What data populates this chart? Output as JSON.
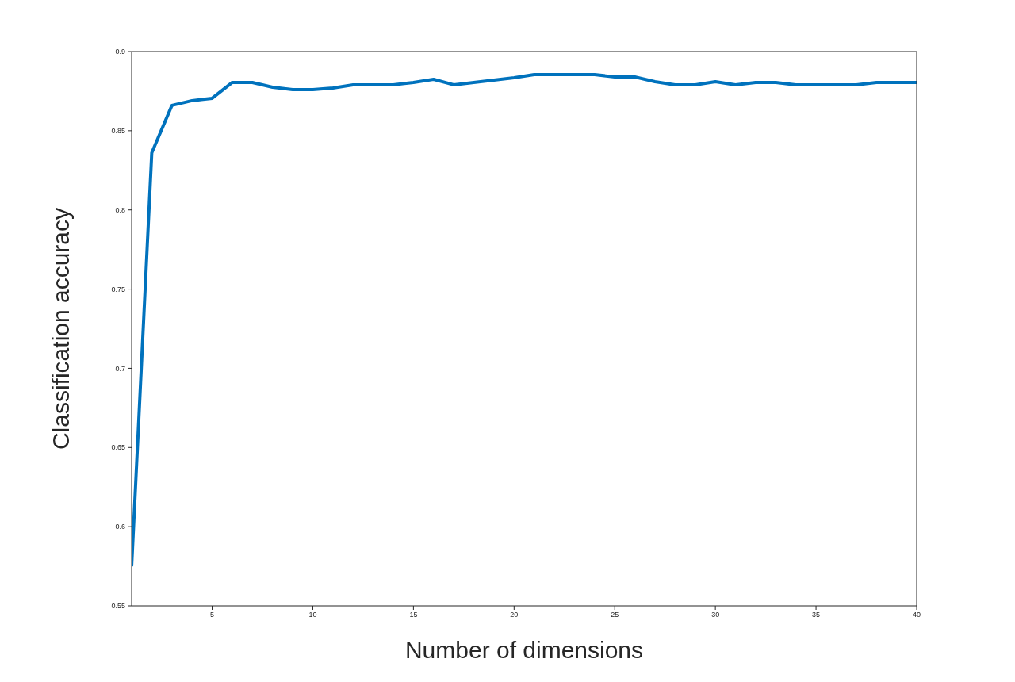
{
  "chart_data": {
    "type": "line",
    "xlabel": "Number of dimensions",
    "ylabel": "Classification accuracy",
    "x": [
      1,
      2,
      3,
      4,
      5,
      6,
      7,
      8,
      9,
      10,
      11,
      12,
      13,
      14,
      15,
      16,
      17,
      18,
      19,
      20,
      21,
      22,
      23,
      24,
      25,
      26,
      27,
      28,
      29,
      30,
      31,
      32,
      33,
      34,
      35,
      36,
      37,
      38,
      39,
      40
    ],
    "series": [
      {
        "color": "#0072bd",
        "values": [
          0.575,
          0.836,
          0.866,
          0.869,
          0.8705,
          0.8805,
          0.8805,
          0.8775,
          0.876,
          0.876,
          0.877,
          0.879,
          0.879,
          0.879,
          0.8805,
          0.8825,
          0.879,
          0.8805,
          0.882,
          0.8835,
          0.8855,
          0.8855,
          0.8855,
          0.8855,
          0.884,
          0.884,
          0.881,
          0.879,
          0.879,
          0.881,
          0.879,
          0.8805,
          0.8805,
          0.879,
          0.879,
          0.879,
          0.879,
          0.8805,
          0.8805,
          0.8805
        ]
      }
    ],
    "xlim": [
      1,
      40
    ],
    "xticks": [
      5,
      10,
      15,
      20,
      25,
      30,
      35,
      40
    ],
    "ylim": [
      0.55,
      0.9
    ],
    "yticks": [
      0.55,
      0.6,
      0.65,
      0.7,
      0.75,
      0.8,
      0.85,
      0.9
    ],
    "grid": false,
    "legend": false,
    "marker": "none",
    "line_style": "solid"
  }
}
